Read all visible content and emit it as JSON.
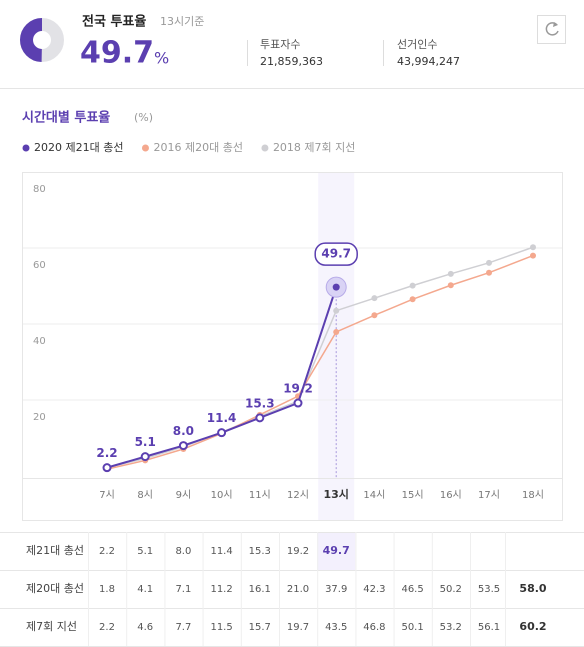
{
  "header": {
    "title": "전국 투표율",
    "subtitle": "13시기준",
    "rate": 49.7,
    "unit": "%",
    "stats": [
      {
        "label": "투표자수",
        "value": "21,859,363"
      },
      {
        "label": "선거인수",
        "value": "43,994,247"
      }
    ]
  },
  "chart_data": {
    "type": "line",
    "title": "시간대별 투표율",
    "unit_label": "(%)",
    "categories": [
      "7시",
      "8시",
      "9시",
      "10시",
      "11시",
      "12시",
      "13시",
      "14시",
      "15시",
      "16시",
      "17시",
      "18시"
    ],
    "highlight_index": 6,
    "ylim": [
      0,
      80
    ],
    "yticks": [
      20,
      40,
      60,
      80
    ],
    "grid": true,
    "row_labels": [
      "제21대 총선",
      "제20대 총선",
      "제7회 지선"
    ],
    "series": [
      {
        "name": "2020 제21대 총선",
        "color": "#5b3fb0",
        "values": [
          2.2,
          5.1,
          8.0,
          11.4,
          15.3,
          19.2,
          49.7,
          null,
          null,
          null,
          null,
          null
        ],
        "value_labels": [
          "2.2",
          "5.1",
          "8.0",
          "11.4",
          "15.3",
          "19.2",
          "49.7",
          null,
          null,
          null,
          null,
          null
        ]
      },
      {
        "name": "2016 제20대 총선",
        "color": "#f4a88e",
        "values": [
          1.8,
          4.1,
          7.1,
          11.2,
          16.1,
          21.0,
          37.9,
          42.3,
          46.5,
          50.2,
          53.5,
          58.0
        ],
        "value_labels": [
          "1.8",
          "4.1",
          "7.1",
          "11.2",
          "16.1",
          "21.0",
          "37.9",
          "42.3",
          "46.5",
          "50.2",
          "53.5",
          "58.0"
        ]
      },
      {
        "name": "2018 제7회 지선",
        "color": "#cfcfd3",
        "values": [
          2.2,
          4.6,
          7.7,
          11.5,
          15.7,
          19.7,
          43.5,
          46.8,
          50.1,
          53.2,
          56.1,
          60.2
        ],
        "value_labels": [
          "2.2",
          "4.6",
          "7.7",
          "11.5",
          "15.7",
          "19.7",
          "43.5",
          "46.8",
          "50.1",
          "53.2",
          "56.1",
          "60.2"
        ]
      }
    ]
  }
}
